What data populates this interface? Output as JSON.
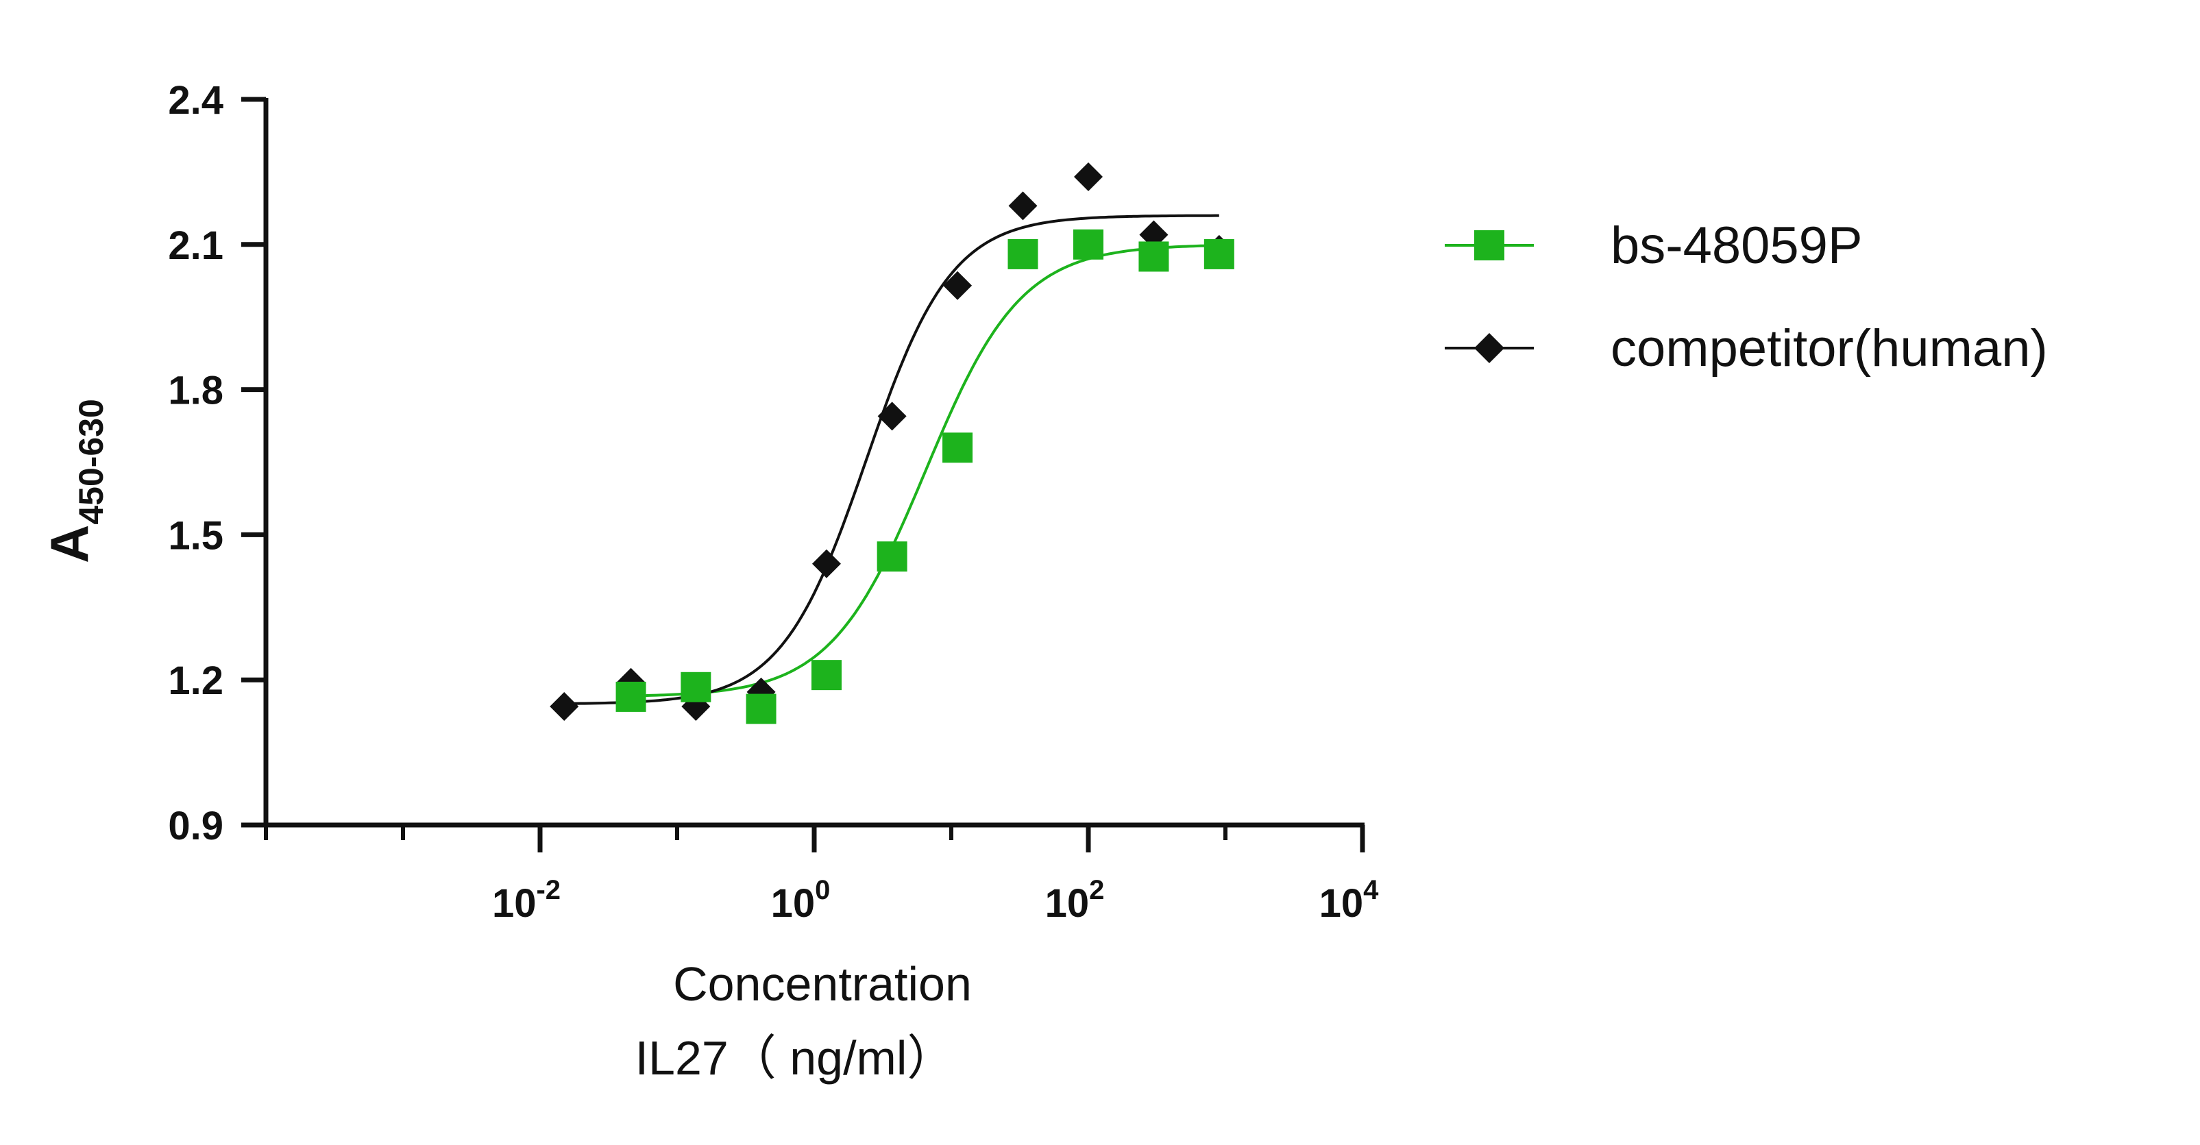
{
  "chart_data": {
    "type": "scatter",
    "title": "",
    "xlabel_lines": [
      "Concentration",
      "IL27（ ng/ml）"
    ],
    "ylabel": {
      "main": "A",
      "subscript": "450-630"
    },
    "x_scale": "log10",
    "xlim": [
      0.0001,
      10000
    ],
    "ylim": [
      0.9,
      2.4
    ],
    "x_ticks": [
      {
        "value": 0.01,
        "base": "10",
        "exp": "-2"
      },
      {
        "value": 1,
        "base": "10",
        "exp": "0"
      },
      {
        "value": 100,
        "base": "10",
        "exp": "2"
      },
      {
        "value": 10000,
        "base": "10",
        "exp": "4"
      }
    ],
    "y_ticks": [
      "0.9",
      "1.2",
      "1.5",
      "1.8",
      "2.1",
      "2.4"
    ],
    "grid": false,
    "legend_position": "right",
    "series": [
      {
        "name": "bs-48059P",
        "marker": "square",
        "color": "#1DB31D",
        "points": [
          {
            "x": 0.046,
            "y": 1.165
          },
          {
            "x": 0.137,
            "y": 1.185
          },
          {
            "x": 0.41,
            "y": 1.14
          },
          {
            "x": 1.23,
            "y": 1.21
          },
          {
            "x": 3.7,
            "y": 1.455
          },
          {
            "x": 11.1,
            "y": 1.68
          },
          {
            "x": 33.3,
            "y": 2.08
          },
          {
            "x": 100,
            "y": 2.1
          },
          {
            "x": 300,
            "y": 2.075
          },
          {
            "x": 900,
            "y": 2.08
          }
        ],
        "fit": {
          "bottom": 1.165,
          "top": 2.1,
          "ec50": 6.5,
          "hill": 1.25
        }
      },
      {
        "name": "competitor(human)",
        "marker": "diamond",
        "color": "#111111",
        "points": [
          {
            "x": 0.015,
            "y": 1.145
          },
          {
            "x": 0.046,
            "y": 1.195
          },
          {
            "x": 0.137,
            "y": 1.145
          },
          {
            "x": 0.41,
            "y": 1.175
          },
          {
            "x": 1.23,
            "y": 1.44
          },
          {
            "x": 3.7,
            "y": 1.745
          },
          {
            "x": 11.1,
            "y": 2.015
          },
          {
            "x": 33.3,
            "y": 2.18
          },
          {
            "x": 100,
            "y": 2.24
          },
          {
            "x": 300,
            "y": 2.12
          },
          {
            "x": 900,
            "y": 2.09
          }
        ],
        "fit": {
          "bottom": 1.15,
          "top": 2.16,
          "ec50": 2.4,
          "hill": 1.4
        }
      }
    ]
  }
}
